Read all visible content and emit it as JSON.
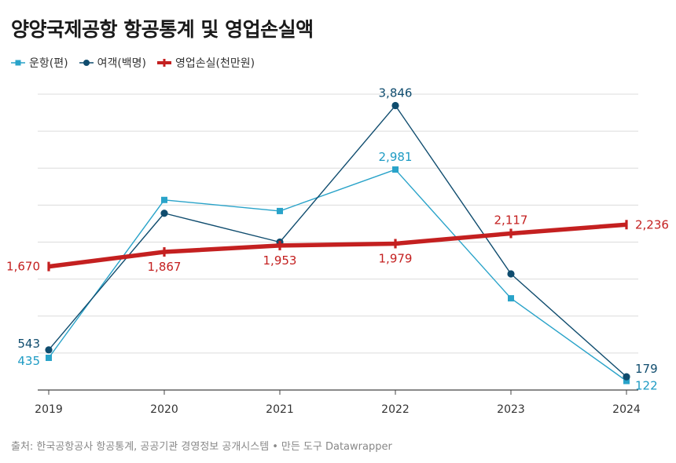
{
  "title": "양양국제공항 항공통계 및 영업손실액",
  "legend": [
    {
      "label": "운항(편)",
      "color": "#29a3c9",
      "marker": "square"
    },
    {
      "label": "여객(백명)",
      "color": "#0f4c6e",
      "marker": "circle"
    },
    {
      "label": "영업손실(천만원)",
      "color": "#c42020",
      "marker": "cross"
    }
  ],
  "source": {
    "text": "출처: 한국공항공사 항공통계, 공공기관 경영정보 공개시스템",
    "credit": "만든 도구 Datawrapper"
  },
  "chart_data": {
    "type": "line",
    "x": [
      "2019",
      "2020",
      "2021",
      "2022",
      "2023",
      "2024"
    ],
    "ylim": [
      0,
      4000
    ],
    "grid": true,
    "legend_position": "top-left",
    "series": [
      {
        "name": "운항(편)",
        "color": "#29a3c9",
        "marker": "square",
        "values": [
          435,
          2570,
          2420,
          2981,
          1240,
          122
        ],
        "labels": [
          "435",
          "",
          "",
          "2,981",
          "",
          "122"
        ]
      },
      {
        "name": "여객(백명)",
        "color": "#0f4c6e",
        "marker": "circle",
        "values": [
          543,
          2390,
          2000,
          3846,
          1570,
          179
        ],
        "labels": [
          "543",
          "",
          "",
          "3,846",
          "",
          "179"
        ]
      },
      {
        "name": "영업손실(천만원)",
        "color": "#c42020",
        "marker": "cross",
        "values": [
          1670,
          1867,
          1953,
          1979,
          2117,
          2236
        ],
        "labels": [
          "1,670",
          "1,867",
          "1,953",
          "1,979",
          "2,117",
          "2,236"
        ]
      }
    ]
  }
}
